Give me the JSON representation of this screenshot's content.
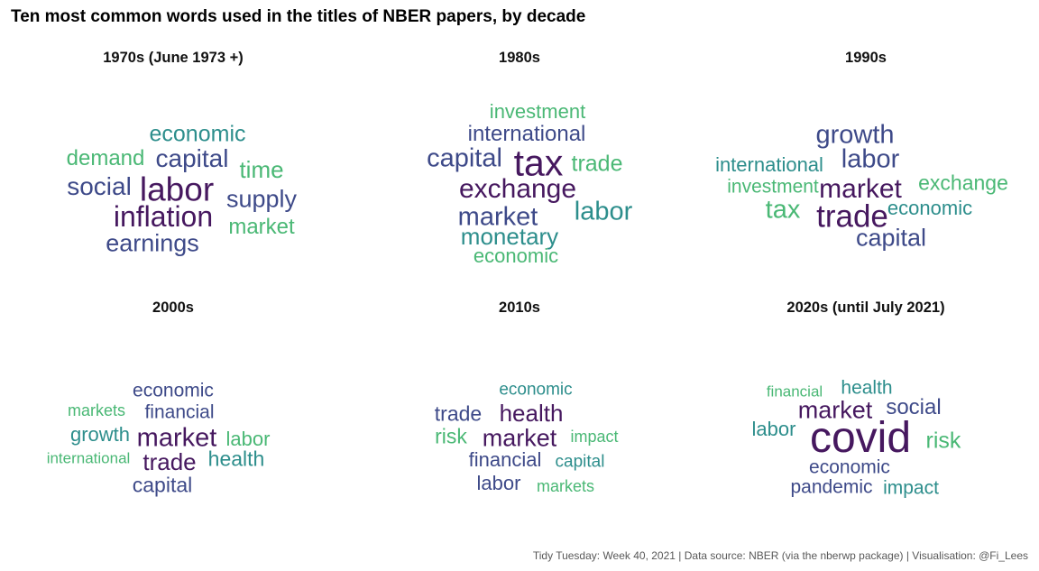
{
  "header": {
    "title": "Ten most common words used in the titles of NBER papers, by decade"
  },
  "caption": "Tidy Tuesday: Week 40, 2021 | Data source: NBER (via the nberwp package) | Visualisation: @Fi_Lees",
  "colors": {
    "purple": "#46185f",
    "navy": "#3e4a89",
    "teal": "#2d8e8c",
    "green": "#4ab875"
  },
  "chart_data": [
    {
      "type": "wordcloud",
      "title": "1970s (June 1973 +)",
      "words": [
        {
          "word": "labor",
          "color": "#46185f"
        },
        {
          "word": "inflation",
          "color": "#46185f"
        },
        {
          "word": "social",
          "color": "#3e4a89"
        },
        {
          "word": "capital",
          "color": "#3e4a89"
        },
        {
          "word": "earnings",
          "color": "#3e4a89"
        },
        {
          "word": "supply",
          "color": "#3e4a89"
        },
        {
          "word": "economic",
          "color": "#2d8e8c"
        },
        {
          "word": "time",
          "color": "#4ab875"
        },
        {
          "word": "demand",
          "color": "#4ab875"
        },
        {
          "word": "market",
          "color": "#4ab875"
        }
      ]
    },
    {
      "type": "wordcloud",
      "title": "1980s",
      "words": [
        {
          "word": "tax",
          "color": "#46185f"
        },
        {
          "word": "exchange",
          "color": "#46185f"
        },
        {
          "word": "capital",
          "color": "#3e4a89"
        },
        {
          "word": "market",
          "color": "#3e4a89"
        },
        {
          "word": "international",
          "color": "#3e4a89"
        },
        {
          "word": "labor",
          "color": "#2d8e8c"
        },
        {
          "word": "monetary",
          "color": "#2d8e8c"
        },
        {
          "word": "trade",
          "color": "#4ab875"
        },
        {
          "word": "investment",
          "color": "#4ab875"
        },
        {
          "word": "economic",
          "color": "#4ab875"
        }
      ]
    },
    {
      "type": "wordcloud",
      "title": "1990s",
      "words": [
        {
          "word": "trade",
          "color": "#46185f"
        },
        {
          "word": "market",
          "color": "#46185f"
        },
        {
          "word": "growth",
          "color": "#3e4a89"
        },
        {
          "word": "labor",
          "color": "#3e4a89"
        },
        {
          "word": "capital",
          "color": "#3e4a89"
        },
        {
          "word": "international",
          "color": "#2d8e8c"
        },
        {
          "word": "economic",
          "color": "#2d8e8c"
        },
        {
          "word": "tax",
          "color": "#4ab875"
        },
        {
          "word": "exchange",
          "color": "#4ab875"
        },
        {
          "word": "investment",
          "color": "#4ab875"
        }
      ]
    },
    {
      "type": "wordcloud",
      "title": "2000s",
      "words": [
        {
          "word": "market",
          "color": "#46185f"
        },
        {
          "word": "trade",
          "color": "#46185f"
        },
        {
          "word": "capital",
          "color": "#3e4a89"
        },
        {
          "word": "economic",
          "color": "#3e4a89"
        },
        {
          "word": "financial",
          "color": "#3e4a89"
        },
        {
          "word": "health",
          "color": "#2d8e8c"
        },
        {
          "word": "growth",
          "color": "#2d8e8c"
        },
        {
          "word": "labor",
          "color": "#4ab875"
        },
        {
          "word": "markets",
          "color": "#4ab875"
        },
        {
          "word": "international",
          "color": "#4ab875"
        }
      ]
    },
    {
      "type": "wordcloud",
      "title": "2010s",
      "words": [
        {
          "word": "market",
          "color": "#46185f"
        },
        {
          "word": "health",
          "color": "#46185f"
        },
        {
          "word": "trade",
          "color": "#3e4a89"
        },
        {
          "word": "financial",
          "color": "#3e4a89"
        },
        {
          "word": "labor",
          "color": "#3e4a89"
        },
        {
          "word": "economic",
          "color": "#2d8e8c"
        },
        {
          "word": "capital",
          "color": "#2d8e8c"
        },
        {
          "word": "risk",
          "color": "#4ab875"
        },
        {
          "word": "impact",
          "color": "#4ab875"
        },
        {
          "word": "markets",
          "color": "#4ab875"
        }
      ]
    },
    {
      "type": "wordcloud",
      "title": "2020s (until July 2021)",
      "words": [
        {
          "word": "covid",
          "color": "#46185f"
        },
        {
          "word": "market",
          "color": "#46185f"
        },
        {
          "word": "social",
          "color": "#3e4a89"
        },
        {
          "word": "economic",
          "color": "#3e4a89"
        },
        {
          "word": "pandemic",
          "color": "#3e4a89"
        },
        {
          "word": "health",
          "color": "#2d8e8c"
        },
        {
          "word": "labor",
          "color": "#2d8e8c"
        },
        {
          "word": "impact",
          "color": "#2d8e8c"
        },
        {
          "word": "risk",
          "color": "#4ab875"
        },
        {
          "word": "financial",
          "color": "#4ab875"
        }
      ]
    }
  ]
}
